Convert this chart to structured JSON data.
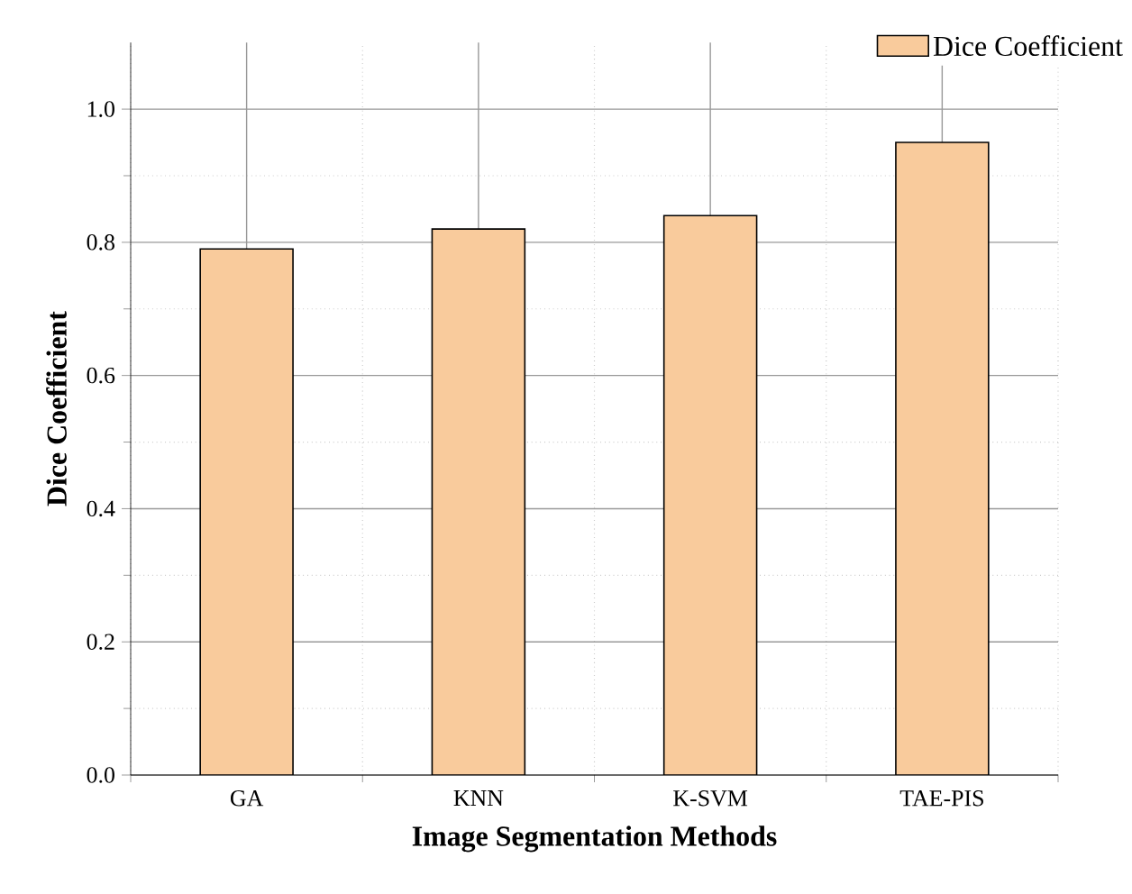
{
  "chart_data": {
    "type": "bar",
    "xlabel": "Image Segmentation Methods",
    "ylabel": "Dice Coefficient",
    "categories": [
      "GA",
      "KNN",
      "K-SVM",
      "TAE-PIS"
    ],
    "series": [
      {
        "name": "Dice Coefficient",
        "color": "#f9cb9c",
        "values": [
          0.79,
          0.82,
          0.84,
          0.95
        ]
      }
    ],
    "ylim": [
      0,
      1.1
    ],
    "yticks": [
      {
        "value": 0,
        "label": "0.0"
      },
      0.2,
      0.4,
      0.6,
      0.8,
      {
        "value": 1,
        "label": "1.0"
      }
    ],
    "grid": true,
    "legend": "top right"
  }
}
